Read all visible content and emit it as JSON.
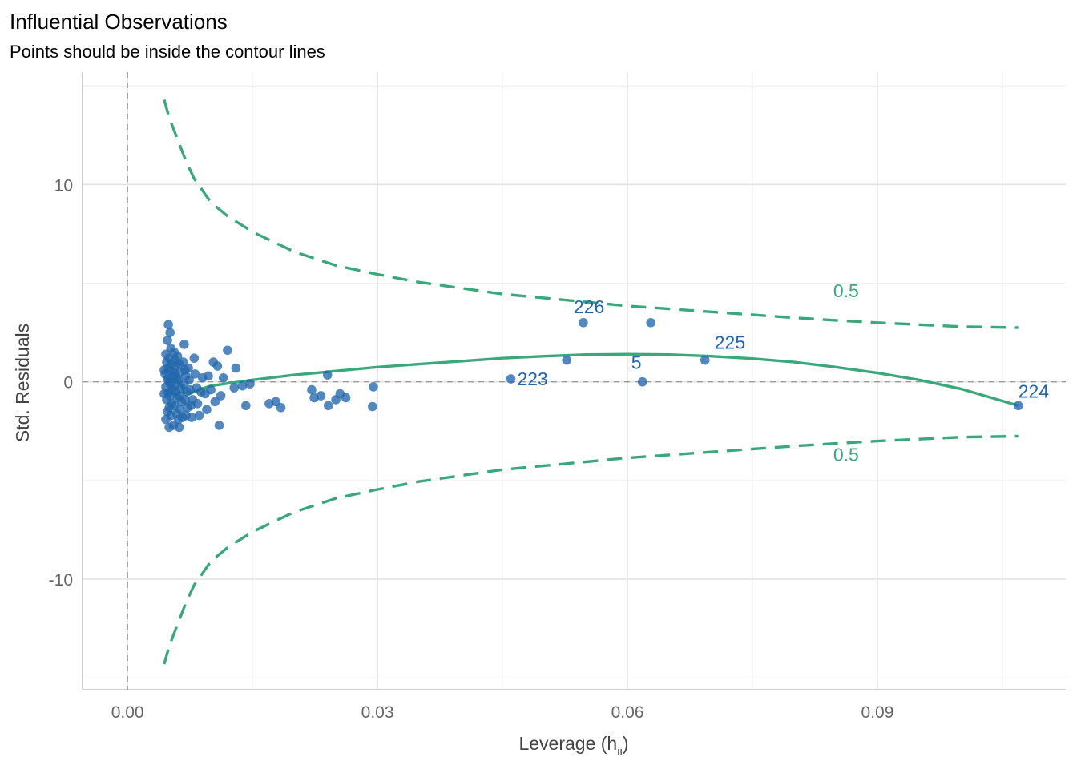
{
  "chart_data": {
    "type": "scatter",
    "title": "Influential Observations",
    "subtitle": "Points should be inside the contour lines",
    "xlabel": "Leverage (h",
    "xlabel_sub": "ii",
    "xlabel_close": ")",
    "ylabel": "Std. Residuals",
    "xlim": [
      -0.0054,
      0.1126
    ],
    "ylim": [
      -15.6,
      15.7
    ],
    "x_ticks": [
      0.0,
      0.03,
      0.06,
      0.09
    ],
    "x_tick_labels": [
      "0.00",
      "0.03",
      "0.06",
      "0.09"
    ],
    "y_ticks": [
      -10,
      0,
      10
    ],
    "y_tick_labels": [
      "-10",
      "0",
      "10"
    ],
    "x_minor": [
      0.015,
      0.045,
      0.075,
      0.105
    ],
    "y_minor": [
      -15,
      -5,
      5,
      15
    ],
    "grid": true,
    "colors": {
      "points": "#2166ac",
      "contour": "#3aa87a",
      "reference": "#9a9a9a"
    },
    "series": [
      {
        "kind": "points",
        "points": [
          [
            0.0049,
            2.9
          ],
          [
            0.0051,
            2.5
          ],
          [
            0.0048,
            2.1
          ],
          [
            0.0052,
            1.7
          ],
          [
            0.0046,
            1.4
          ],
          [
            0.005,
            1.2
          ],
          [
            0.0047,
            1.0
          ],
          [
            0.0053,
            0.9
          ],
          [
            0.0049,
            0.7
          ],
          [
            0.0051,
            0.55
          ],
          [
            0.0045,
            0.4
          ],
          [
            0.0055,
            0.3
          ],
          [
            0.0048,
            0.15
          ],
          [
            0.005,
            0.0
          ],
          [
            0.0052,
            -0.1
          ],
          [
            0.0046,
            -0.25
          ],
          [
            0.0054,
            -0.4
          ],
          [
            0.0049,
            -0.55
          ],
          [
            0.0051,
            -0.7
          ],
          [
            0.0047,
            -0.9
          ],
          [
            0.0053,
            -1.1
          ],
          [
            0.005,
            -1.3
          ],
          [
            0.0048,
            -1.5
          ],
          [
            0.0052,
            -1.7
          ],
          [
            0.0046,
            -1.9
          ],
          [
            0.005,
            -2.3
          ],
          [
            0.0055,
            -2.2
          ],
          [
            0.0044,
            0.6
          ],
          [
            0.0044,
            -0.6
          ],
          [
            0.0056,
            1.5
          ],
          [
            0.0057,
            1.1
          ],
          [
            0.0058,
            0.8
          ],
          [
            0.0056,
            0.45
          ],
          [
            0.0059,
            0.2
          ],
          [
            0.0057,
            -0.2
          ],
          [
            0.0058,
            -0.5
          ],
          [
            0.006,
            -0.8
          ],
          [
            0.0056,
            -1.2
          ],
          [
            0.0059,
            -1.6
          ],
          [
            0.0061,
            -1.9
          ],
          [
            0.0062,
            -2.3
          ],
          [
            0.006,
            1.3
          ],
          [
            0.0062,
            0.9
          ],
          [
            0.0063,
            0.5
          ],
          [
            0.0061,
            0.1
          ],
          [
            0.0064,
            -0.3
          ],
          [
            0.0062,
            -0.7
          ],
          [
            0.0065,
            -1.0
          ],
          [
            0.0063,
            -1.4
          ],
          [
            0.0066,
            -1.8
          ],
          [
            0.0068,
            1.9
          ],
          [
            0.0067,
            1.0
          ],
          [
            0.0069,
            0.6
          ],
          [
            0.007,
            0.3
          ],
          [
            0.0068,
            -0.1
          ],
          [
            0.0071,
            -0.5
          ],
          [
            0.0069,
            -0.9
          ],
          [
            0.0072,
            -1.3
          ],
          [
            0.007,
            -1.7
          ],
          [
            0.0073,
            0.7
          ],
          [
            0.0074,
            0.1
          ],
          [
            0.0075,
            -0.4
          ],
          [
            0.0076,
            -1.2
          ],
          [
            0.0077,
            -1.8
          ],
          [
            0.0078,
            -0.9
          ],
          [
            0.008,
            1.2
          ],
          [
            0.0081,
            0.4
          ],
          [
            0.0083,
            -0.3
          ],
          [
            0.0084,
            -1.1
          ],
          [
            0.0086,
            -1.7
          ],
          [
            0.0088,
            -0.5
          ],
          [
            0.009,
            0.2
          ],
          [
            0.0093,
            -0.6
          ],
          [
            0.0095,
            -1.4
          ],
          [
            0.0097,
            0.3
          ],
          [
            0.01,
            -0.4
          ],
          [
            0.0103,
            1.0
          ],
          [
            0.0105,
            -1.0
          ],
          [
            0.0108,
            0.8
          ],
          [
            0.011,
            -2.2
          ],
          [
            0.0112,
            -0.7
          ],
          [
            0.0115,
            0.2
          ],
          [
            0.012,
            1.6
          ],
          [
            0.0128,
            -0.3
          ],
          [
            0.013,
            0.7
          ],
          [
            0.0138,
            -0.2
          ],
          [
            0.0142,
            -1.2
          ],
          [
            0.0147,
            -0.1
          ],
          [
            0.017,
            -1.1
          ],
          [
            0.0178,
            -1.0
          ],
          [
            0.0184,
            -1.3
          ],
          [
            0.0221,
            -0.4
          ],
          [
            0.0224,
            -0.8
          ],
          [
            0.0232,
            -0.7
          ],
          [
            0.024,
            0.35
          ],
          [
            0.0241,
            -1.2
          ],
          [
            0.025,
            -0.9
          ],
          [
            0.0255,
            -0.6
          ],
          [
            0.0262,
            -0.8
          ],
          [
            0.0295,
            -0.25
          ],
          [
            0.0294,
            -1.25
          ],
          [
            0.046,
            0.15
          ],
          [
            0.0527,
            1.1
          ],
          [
            0.0547,
            3.0
          ],
          [
            0.0618,
            0.0
          ],
          [
            0.0628,
            3.0
          ],
          [
            0.0693,
            1.1
          ],
          [
            0.1069,
            -1.2
          ]
        ]
      },
      {
        "kind": "smooth",
        "points": [
          [
            0.0044,
            0.2
          ],
          [
            0.0055,
            0.15
          ],
          [
            0.0062,
            0.0
          ],
          [
            0.0068,
            -0.55
          ],
          [
            0.0075,
            -0.6
          ],
          [
            0.0085,
            -0.4
          ],
          [
            0.01,
            -0.2
          ],
          [
            0.0125,
            -0.05
          ],
          [
            0.015,
            0.1
          ],
          [
            0.02,
            0.35
          ],
          [
            0.025,
            0.55
          ],
          [
            0.03,
            0.75
          ],
          [
            0.035,
            0.9
          ],
          [
            0.04,
            1.05
          ],
          [
            0.045,
            1.2
          ],
          [
            0.05,
            1.3
          ],
          [
            0.055,
            1.38
          ],
          [
            0.06,
            1.4
          ],
          [
            0.065,
            1.38
          ],
          [
            0.07,
            1.3
          ],
          [
            0.075,
            1.18
          ],
          [
            0.08,
            1.0
          ],
          [
            0.085,
            0.75
          ],
          [
            0.09,
            0.45
          ],
          [
            0.095,
            0.1
          ],
          [
            0.1,
            -0.35
          ],
          [
            0.1069,
            -1.2
          ]
        ]
      },
      {
        "kind": "contour",
        "name": "upper",
        "points": [
          [
            0.0044,
            14.3
          ],
          [
            0.005,
            13.4
          ],
          [
            0.006,
            12.3
          ],
          [
            0.007,
            11.2
          ],
          [
            0.008,
            10.3
          ],
          [
            0.009,
            9.7
          ],
          [
            0.01,
            9.1
          ],
          [
            0.012,
            8.4
          ],
          [
            0.015,
            7.6
          ],
          [
            0.02,
            6.6
          ],
          [
            0.025,
            5.9
          ],
          [
            0.03,
            5.45
          ],
          [
            0.035,
            5.05
          ],
          [
            0.04,
            4.75
          ],
          [
            0.045,
            4.45
          ],
          [
            0.05,
            4.25
          ],
          [
            0.055,
            4.05
          ],
          [
            0.06,
            3.85
          ],
          [
            0.065,
            3.7
          ],
          [
            0.07,
            3.55
          ],
          [
            0.075,
            3.4
          ],
          [
            0.08,
            3.25
          ],
          [
            0.085,
            3.12
          ],
          [
            0.09,
            3.0
          ],
          [
            0.095,
            2.9
          ],
          [
            0.1,
            2.8
          ],
          [
            0.1069,
            2.75
          ]
        ]
      },
      {
        "kind": "contour",
        "name": "lower",
        "points": [
          [
            0.0044,
            -14.3
          ],
          [
            0.005,
            -13.4
          ],
          [
            0.006,
            -12.3
          ],
          [
            0.007,
            -11.2
          ],
          [
            0.008,
            -10.3
          ],
          [
            0.009,
            -9.7
          ],
          [
            0.01,
            -9.1
          ],
          [
            0.012,
            -8.4
          ],
          [
            0.015,
            -7.6
          ],
          [
            0.02,
            -6.6
          ],
          [
            0.025,
            -5.9
          ],
          [
            0.03,
            -5.45
          ],
          [
            0.035,
            -5.05
          ],
          [
            0.04,
            -4.75
          ],
          [
            0.045,
            -4.45
          ],
          [
            0.05,
            -4.25
          ],
          [
            0.055,
            -4.05
          ],
          [
            0.06,
            -3.85
          ],
          [
            0.065,
            -3.7
          ],
          [
            0.07,
            -3.55
          ],
          [
            0.075,
            -3.4
          ],
          [
            0.08,
            -3.25
          ],
          [
            0.085,
            -3.12
          ],
          [
            0.09,
            -3.0
          ],
          [
            0.095,
            -2.9
          ],
          [
            0.1,
            -2.8
          ],
          [
            0.1069,
            -2.75
          ]
        ]
      }
    ],
    "point_labels": [
      {
        "text": "226",
        "x": 0.0547,
        "y": 3.0
      },
      {
        "text": "5",
        "x": 0.0618,
        "y": 0.0
      },
      {
        "text": "225",
        "x": 0.0693,
        "y": 1.1
      },
      {
        "text": "223",
        "x": 0.046,
        "y": 0.15
      },
      {
        "text": "224",
        "x": 0.1069,
        "y": -1.2
      }
    ],
    "contour_labels": [
      {
        "text": "0.5",
        "x": 0.0847,
        "y": 4.3
      },
      {
        "text": "0.5",
        "x": 0.0847,
        "y": -4.0
      }
    ]
  }
}
